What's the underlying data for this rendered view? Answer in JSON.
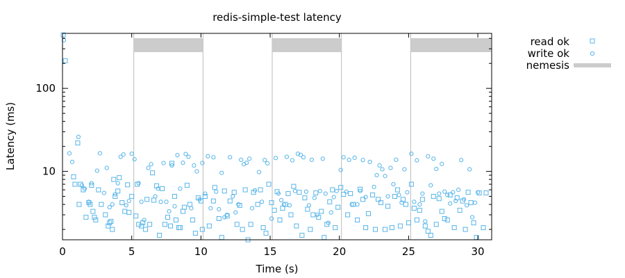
{
  "chart_data": {
    "type": "scatter",
    "title": "redis-simple-test latency",
    "xlabel": "Time (s)",
    "ylabel": "Latency (ms)",
    "x_range": [
      0,
      31
    ],
    "y_range": [
      1.5,
      460
    ],
    "y_scale": "log",
    "x_ticks": [
      0,
      5,
      10,
      15,
      20,
      25,
      30
    ],
    "y_ticks": [
      10,
      100
    ],
    "grid": false,
    "legend_position": "outside-right",
    "colors": {
      "read": "#56b4e9",
      "write": "#56b4e9",
      "nemesis": "#cccccc",
      "nemesis_line": "#bbbbbb",
      "axis": "#000000"
    },
    "legend": [
      {
        "label": "read ok",
        "marker": "square"
      },
      {
        "label": "write ok",
        "marker": "circle"
      },
      {
        "label": "nemesis",
        "marker": "band"
      }
    ],
    "nemesis_lines": [
      5.15,
      10.15,
      15.15,
      20.15,
      25.15
    ],
    "nemesis_bands": [
      [
        5.15,
        10.15
      ],
      [
        15.15,
        20.15
      ],
      [
        25.15,
        31.0
      ]
    ],
    "series": [
      {
        "name": "read ok",
        "marker": "square",
        "points": [
          [
            0.05,
            440
          ],
          [
            0.2,
            215
          ],
          [
            0.8,
            8.6
          ],
          [
            0.9,
            7.0
          ],
          [
            1.1,
            22
          ],
          [
            1.2,
            4.0
          ],
          [
            1.3,
            7.0
          ],
          [
            1.5,
            6.0
          ],
          [
            1.7,
            2.8
          ],
          [
            1.9,
            4.2
          ],
          [
            2.0,
            4.0
          ],
          [
            2.1,
            6.8
          ],
          [
            2.2,
            3.3
          ],
          [
            2.3,
            2.8
          ],
          [
            2.4,
            2.6
          ],
          [
            2.6,
            6.0
          ],
          [
            2.8,
            4.0
          ],
          [
            3.1,
            3.0
          ],
          [
            3.3,
            2.2
          ],
          [
            3.4,
            2.4
          ],
          [
            3.5,
            2.5
          ],
          [
            3.6,
            2.0
          ],
          [
            3.7,
            8.0
          ],
          [
            3.8,
            5.0
          ],
          [
            4.0,
            5.8
          ],
          [
            4.1,
            8.4
          ],
          [
            4.3,
            4.2
          ],
          [
            4.5,
            3.3
          ],
          [
            4.7,
            6.9
          ],
          [
            4.8,
            3.2
          ],
          [
            5.0,
            5.0
          ],
          [
            5.3,
            2.9
          ],
          [
            5.4,
            7.0
          ],
          [
            5.5,
            2.3
          ],
          [
            5.7,
            2.2
          ],
          [
            5.8,
            2.4
          ],
          [
            6.0,
            2.0
          ],
          [
            6.1,
            4.6
          ],
          [
            6.3,
            2.3
          ],
          [
            6.5,
            9.6
          ],
          [
            6.6,
            4.5
          ],
          [
            6.8,
            6.7
          ],
          [
            7.0,
            1.7
          ],
          [
            7.2,
            6.2
          ],
          [
            7.4,
            2.3
          ],
          [
            7.6,
            2.8
          ],
          [
            7.8,
            2.2
          ],
          [
            7.9,
            12.5
          ],
          [
            8.1,
            5.0
          ],
          [
            8.2,
            2.6
          ],
          [
            8.4,
            2.1
          ],
          [
            8.5,
            2.1
          ],
          [
            8.7,
            3.3
          ],
          [
            8.8,
            3.7
          ],
          [
            9.0,
            6.8
          ],
          [
            9.2,
            4.0
          ],
          [
            9.4,
            2.6
          ],
          [
            9.6,
            1.8
          ],
          [
            9.8,
            4.8
          ],
          [
            10.0,
            4.4
          ],
          [
            10.1,
            2.0
          ],
          [
            10.3,
            5.0
          ],
          [
            10.6,
            2.2
          ],
          [
            10.9,
            4.4
          ],
          [
            11.0,
            6.4
          ],
          [
            11.3,
            2.7
          ],
          [
            11.5,
            1.6
          ],
          [
            11.7,
            5.8
          ],
          [
            11.9,
            2.9
          ],
          [
            12.1,
            4.4
          ],
          [
            12.4,
            5.6
          ],
          [
            12.6,
            2.3
          ],
          [
            12.8,
            3.9
          ],
          [
            13.0,
            2.0
          ],
          [
            13.2,
            6.0
          ],
          [
            13.4,
            1.5
          ],
          [
            13.6,
            2.3
          ],
          [
            13.8,
            5.6
          ],
          [
            14.1,
            4.0
          ],
          [
            14.3,
            6.0
          ],
          [
            14.5,
            2.1
          ],
          [
            14.7,
            1.8
          ],
          [
            14.9,
            7.0
          ],
          [
            15.1,
            4.2
          ],
          [
            15.3,
            3.4
          ],
          [
            15.5,
            5.7
          ],
          [
            15.7,
            2.6
          ],
          [
            15.9,
            3.6
          ],
          [
            16.1,
            4.0
          ],
          [
            16.3,
            5.4
          ],
          [
            16.5,
            3.0
          ],
          [
            16.7,
            6.6
          ],
          [
            16.9,
            2.2
          ],
          [
            17.1,
            5.6
          ],
          [
            17.3,
            1.7
          ],
          [
            17.5,
            4.8
          ],
          [
            17.7,
            3.5
          ],
          [
            17.9,
            2.0
          ],
          [
            18.1,
            3.0
          ],
          [
            18.3,
            5.5
          ],
          [
            18.5,
            2.8
          ],
          [
            18.7,
            3.3
          ],
          [
            18.9,
            1.6
          ],
          [
            19.1,
            2.3
          ],
          [
            19.3,
            4.3
          ],
          [
            19.5,
            6.0
          ],
          [
            19.7,
            2.1
          ],
          [
            19.9,
            3.7
          ],
          [
            20.1,
            6.4
          ],
          [
            20.3,
            5.3
          ],
          [
            20.6,
            3.0
          ],
          [
            20.8,
            5.4
          ],
          [
            21.0,
            4.0
          ],
          [
            21.3,
            2.6
          ],
          [
            21.5,
            6.1
          ],
          [
            21.7,
            4.6
          ],
          [
            21.9,
            2.1
          ],
          [
            22.1,
            3.1
          ],
          [
            22.4,
            5.2
          ],
          [
            22.6,
            2.0
          ],
          [
            22.8,
            4.6
          ],
          [
            23.0,
            4.2
          ],
          [
            23.3,
            2.0
          ],
          [
            23.5,
            3.8
          ],
          [
            23.8,
            2.1
          ],
          [
            24.0,
            5.0
          ],
          [
            24.2,
            6.0
          ],
          [
            24.4,
            2.2
          ],
          [
            24.6,
            4.6
          ],
          [
            24.8,
            4.0
          ],
          [
            25.0,
            2.4
          ],
          [
            25.2,
            7.0
          ],
          [
            25.4,
            3.6
          ],
          [
            25.6,
            2.6
          ],
          [
            25.8,
            3.4
          ],
          [
            26.0,
            4.6
          ],
          [
            26.2,
            2.2
          ],
          [
            26.4,
            1.9
          ],
          [
            26.6,
            1.7
          ],
          [
            26.8,
            5.0
          ],
          [
            27.0,
            2.3
          ],
          [
            27.2,
            4.7
          ],
          [
            27.4,
            3.3
          ],
          [
            27.6,
            2.7
          ],
          [
            27.8,
            2.6
          ],
          [
            28.0,
            5.2
          ],
          [
            28.3,
            2.1
          ],
          [
            28.5,
            4.8
          ],
          [
            28.7,
            3.4
          ],
          [
            28.9,
            4.4
          ],
          [
            29.1,
            2.0
          ],
          [
            29.3,
            5.6
          ],
          [
            29.5,
            4.2
          ],
          [
            29.7,
            2.4
          ],
          [
            29.9,
            1.6
          ],
          [
            30.1,
            5.5
          ],
          [
            30.4,
            2.1
          ],
          [
            30.6,
            5.5
          ]
        ]
      },
      {
        "name": "write ok",
        "marker": "circle",
        "points": [
          [
            0.1,
            380
          ],
          [
            0.5,
            16.5
          ],
          [
            0.7,
            13.0
          ],
          [
            1.15,
            26.0
          ],
          [
            1.4,
            6.8
          ],
          [
            1.6,
            6.2
          ],
          [
            1.9,
            4.3
          ],
          [
            2.1,
            7.2
          ],
          [
            2.5,
            10.2
          ],
          [
            2.7,
            16.5
          ],
          [
            3.0,
            5.5
          ],
          [
            3.2,
            11.0
          ],
          [
            3.4,
            3.7
          ],
          [
            3.6,
            4.0
          ],
          [
            3.8,
            5.3
          ],
          [
            4.0,
            7.2
          ],
          [
            4.2,
            15.0
          ],
          [
            4.4,
            16.0
          ],
          [
            4.6,
            3.9
          ],
          [
            4.8,
            4.4
          ],
          [
            5.0,
            16.3
          ],
          [
            5.2,
            14.0
          ],
          [
            5.5,
            7.2
          ],
          [
            5.7,
            4.3
          ],
          [
            5.9,
            2.6
          ],
          [
            6.2,
            11.0
          ],
          [
            6.4,
            12.2
          ],
          [
            6.7,
            5.0
          ],
          [
            6.9,
            6.2
          ],
          [
            7.1,
            4.3
          ],
          [
            7.3,
            12.6
          ],
          [
            7.5,
            4.3
          ],
          [
            7.7,
            3.3
          ],
          [
            7.9,
            11.8
          ],
          [
            8.1,
            3.8
          ],
          [
            8.3,
            15.7
          ],
          [
            8.5,
            6.2
          ],
          [
            8.7,
            12.7
          ],
          [
            8.9,
            16.2
          ],
          [
            9.1,
            15.0
          ],
          [
            9.3,
            3.6
          ],
          [
            9.5,
            11.8
          ],
          [
            9.7,
            10.0
          ],
          [
            9.9,
            4.6
          ],
          [
            10.1,
            12.6
          ],
          [
            10.3,
            5.4
          ],
          [
            10.5,
            15.2
          ],
          [
            10.7,
            3.6
          ],
          [
            10.9,
            14.8
          ],
          [
            11.1,
            5.7
          ],
          [
            11.3,
            3.5
          ],
          [
            11.5,
            9.6
          ],
          [
            11.7,
            2.8
          ],
          [
            11.9,
            3.0
          ],
          [
            12.1,
            14.8
          ],
          [
            12.3,
            5.0
          ],
          [
            12.5,
            3.2
          ],
          [
            12.7,
            4.0
          ],
          [
            12.9,
            13.8
          ],
          [
            13.1,
            12.2
          ],
          [
            13.3,
            12.7
          ],
          [
            13.5,
            14.2
          ],
          [
            13.7,
            3.6
          ],
          [
            13.9,
            5.9
          ],
          [
            14.2,
            9.8
          ],
          [
            14.4,
            4.3
          ],
          [
            14.6,
            13.7
          ],
          [
            14.8,
            12.5
          ],
          [
            15.1,
            2.7
          ],
          [
            15.4,
            14.5
          ],
          [
            15.6,
            5.4
          ],
          [
            15.8,
            4.5
          ],
          [
            16.0,
            4.0
          ],
          [
            16.2,
            15.0
          ],
          [
            16.4,
            3.9
          ],
          [
            16.6,
            13.6
          ],
          [
            16.8,
            5.8
          ],
          [
            17.0,
            16.3
          ],
          [
            17.2,
            15.8
          ],
          [
            17.4,
            14.8
          ],
          [
            17.6,
            5.7
          ],
          [
            17.8,
            3.9
          ],
          [
            18.0,
            13.8
          ],
          [
            18.2,
            4.8
          ],
          [
            18.4,
            3.0
          ],
          [
            18.6,
            5.8
          ],
          [
            18.8,
            14.2
          ],
          [
            19.0,
            5.4
          ],
          [
            19.2,
            2.4
          ],
          [
            19.4,
            3.2
          ],
          [
            19.6,
            4.9
          ],
          [
            19.8,
            5.8
          ],
          [
            20.1,
            10.4
          ],
          [
            20.3,
            14.8
          ],
          [
            20.5,
            5.7
          ],
          [
            20.7,
            13.8
          ],
          [
            20.9,
            4.0
          ],
          [
            21.1,
            14.6
          ],
          [
            21.3,
            4.0
          ],
          [
            21.5,
            5.8
          ],
          [
            21.7,
            13.7
          ],
          [
            21.9,
            4.9
          ],
          [
            22.2,
            13.0
          ],
          [
            22.5,
            6.5
          ],
          [
            22.7,
            9.0
          ],
          [
            22.9,
            11.8
          ],
          [
            23.1,
            10.6
          ],
          [
            23.3,
            8.8
          ],
          [
            23.5,
            5.0
          ],
          [
            23.7,
            11.0
          ],
          [
            23.9,
            7.0
          ],
          [
            24.1,
            13.8
          ],
          [
            24.3,
            5.2
          ],
          [
            24.5,
            4.2
          ],
          [
            24.7,
            10.6
          ],
          [
            24.9,
            5.6
          ],
          [
            25.2,
            16.3
          ],
          [
            25.4,
            4.3
          ],
          [
            25.6,
            13.6
          ],
          [
            25.8,
            4.0
          ],
          [
            26.0,
            5.4
          ],
          [
            26.2,
            2.5
          ],
          [
            26.4,
            15.2
          ],
          [
            26.6,
            6.8
          ],
          [
            26.8,
            14.2
          ],
          [
            27.0,
            10.7
          ],
          [
            27.2,
            5.4
          ],
          [
            27.4,
            12.3
          ],
          [
            27.6,
            5.7
          ],
          [
            27.8,
            5.2
          ],
          [
            28.0,
            4.1
          ],
          [
            28.2,
            5.6
          ],
          [
            28.4,
            4.4
          ],
          [
            28.6,
            6.0
          ],
          [
            28.8,
            13.7
          ],
          [
            29.0,
            4.6
          ],
          [
            29.2,
            3.9
          ],
          [
            29.4,
            10.6
          ],
          [
            29.6,
            2.8
          ],
          [
            29.8,
            4.2
          ],
          [
            30.0,
            5.6
          ]
        ]
      }
    ]
  }
}
